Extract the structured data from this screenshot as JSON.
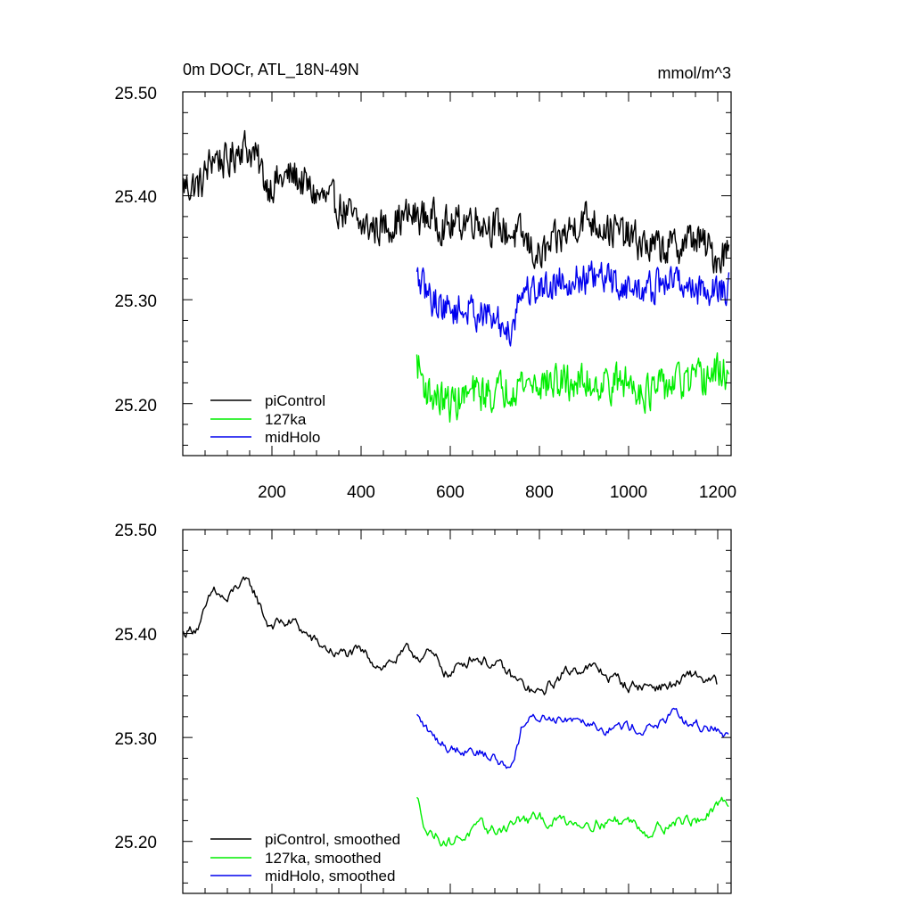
{
  "chart_data": [
    {
      "type": "line",
      "title": "0m DOCr, ATL_18N-49N",
      "units": "mmol/m^3",
      "xlim": [
        0,
        1230
      ],
      "ylim": [
        25.15,
        25.5
      ],
      "x_ticks": [
        "200",
        "400",
        "600",
        "800",
        "1000",
        "1200"
      ],
      "y_ticks": [
        "25.50",
        "25.40",
        "25.30",
        "25.20"
      ],
      "legend_position": "bottom-left",
      "series": [
        {
          "name": "piControl",
          "color": "#000000",
          "x_start": 1,
          "x_end": 1225,
          "anchors": [
            [
              1,
              25.41
            ],
            [
              40,
              25.41
            ],
            [
              70,
              25.44
            ],
            [
              100,
              25.43
            ],
            [
              130,
              25.45
            ],
            [
              160,
              25.44
            ],
            [
              190,
              25.41
            ],
            [
              250,
              25.42
            ],
            [
              300,
              25.4
            ],
            [
              350,
              25.39
            ],
            [
              400,
              25.37
            ],
            [
              450,
              25.37
            ],
            [
              500,
              25.38
            ],
            [
              550,
              25.38
            ],
            [
              600,
              25.37
            ],
            [
              650,
              25.38
            ],
            [
              700,
              25.37
            ],
            [
              760,
              25.36
            ],
            [
              800,
              25.34
            ],
            [
              850,
              25.36
            ],
            [
              900,
              25.38
            ],
            [
              950,
              25.37
            ],
            [
              1000,
              25.36
            ],
            [
              1050,
              25.35
            ],
            [
              1100,
              25.35
            ],
            [
              1150,
              25.36
            ],
            [
              1200,
              25.34
            ],
            [
              1225,
              25.35
            ]
          ],
          "noise": 0.018
        },
        {
          "name": "127ka",
          "color": "#00ee00",
          "x_start": 525,
          "x_end": 1225,
          "anchors": [
            [
              525,
              25.24
            ],
            [
              550,
              25.21
            ],
            [
              600,
              25.2
            ],
            [
              650,
              25.21
            ],
            [
              700,
              25.21
            ],
            [
              750,
              25.22
            ],
            [
              800,
              25.22
            ],
            [
              850,
              25.22
            ],
            [
              900,
              25.22
            ],
            [
              950,
              25.22
            ],
            [
              1000,
              25.22
            ],
            [
              1050,
              25.21
            ],
            [
              1100,
              25.22
            ],
            [
              1150,
              25.22
            ],
            [
              1200,
              25.23
            ],
            [
              1225,
              25.23
            ]
          ],
          "noise": 0.018
        },
        {
          "name": "midHolo",
          "color": "#0000ee",
          "x_start": 525,
          "x_end": 1225,
          "anchors": [
            [
              525,
              25.32
            ],
            [
              560,
              25.3
            ],
            [
              600,
              25.29
            ],
            [
              650,
              25.29
            ],
            [
              700,
              25.28
            ],
            [
              735,
              25.27
            ],
            [
              760,
              25.31
            ],
            [
              800,
              25.31
            ],
            [
              850,
              25.32
            ],
            [
              900,
              25.32
            ],
            [
              950,
              25.32
            ],
            [
              1000,
              25.31
            ],
            [
              1050,
              25.31
            ],
            [
              1100,
              25.32
            ],
            [
              1150,
              25.31
            ],
            [
              1200,
              25.31
            ],
            [
              1225,
              25.31
            ]
          ],
          "noise": 0.016
        }
      ]
    },
    {
      "type": "line",
      "xlim": [
        0,
        1230
      ],
      "ylim": [
        25.15,
        25.5
      ],
      "y_ticks": [
        "25.50",
        "25.40",
        "25.30",
        "25.20"
      ],
      "legend_position": "bottom-left",
      "series": [
        {
          "name": "piControl, smoothed",
          "color": "#000000",
          "x_start": 1,
          "x_end": 1200,
          "anchors": [
            [
              1,
              25.4
            ],
            [
              40,
              25.41
            ],
            [
              70,
              25.44
            ],
            [
              100,
              25.43
            ],
            [
              130,
              25.45
            ],
            [
              160,
              25.44
            ],
            [
              190,
              25.41
            ],
            [
              250,
              25.41
            ],
            [
              300,
              25.39
            ],
            [
              350,
              25.38
            ],
            [
              400,
              25.38
            ],
            [
              450,
              25.37
            ],
            [
              500,
              25.38
            ],
            [
              550,
              25.38
            ],
            [
              600,
              25.36
            ],
            [
              650,
              25.38
            ],
            [
              700,
              25.37
            ],
            [
              760,
              25.35
            ],
            [
              800,
              25.34
            ],
            [
              850,
              25.36
            ],
            [
              900,
              25.37
            ],
            [
              950,
              25.36
            ],
            [
              1000,
              25.35
            ],
            [
              1050,
              25.35
            ],
            [
              1100,
              25.35
            ],
            [
              1150,
              25.36
            ],
            [
              1200,
              25.35
            ]
          ],
          "noise": 0.01
        },
        {
          "name": "127ka, smoothed",
          "color": "#00ee00",
          "x_start": 525,
          "x_end": 1225,
          "anchors": [
            [
              525,
              25.24
            ],
            [
              550,
              25.21
            ],
            [
              600,
              25.2
            ],
            [
              650,
              25.21
            ],
            [
              700,
              25.21
            ],
            [
              750,
              25.22
            ],
            [
              800,
              25.22
            ],
            [
              850,
              25.22
            ],
            [
              900,
              25.22
            ],
            [
              950,
              25.22
            ],
            [
              1000,
              25.22
            ],
            [
              1050,
              25.21
            ],
            [
              1100,
              25.22
            ],
            [
              1150,
              25.22
            ],
            [
              1200,
              25.23
            ],
            [
              1225,
              25.24
            ]
          ],
          "noise": 0.01
        },
        {
          "name": "midHolo, smoothed",
          "color": "#0000ee",
          "x_start": 525,
          "x_end": 1225,
          "anchors": [
            [
              525,
              25.32
            ],
            [
              560,
              25.3
            ],
            [
              600,
              25.29
            ],
            [
              650,
              25.29
            ],
            [
              700,
              25.28
            ],
            [
              735,
              25.27
            ],
            [
              760,
              25.31
            ],
            [
              800,
              25.32
            ],
            [
              850,
              25.32
            ],
            [
              900,
              25.32
            ],
            [
              950,
              25.31
            ],
            [
              1000,
              25.31
            ],
            [
              1050,
              25.31
            ],
            [
              1100,
              25.32
            ],
            [
              1150,
              25.31
            ],
            [
              1200,
              25.31
            ],
            [
              1225,
              25.3
            ]
          ],
          "noise": 0.009
        }
      ]
    }
  ]
}
